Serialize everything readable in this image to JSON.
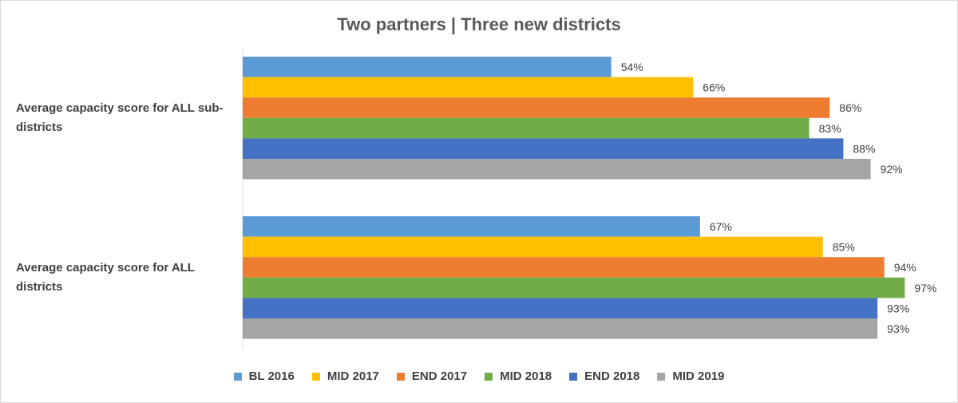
{
  "chart_data": {
    "type": "bar",
    "orientation": "horizontal",
    "title": "Two partners | Three new districts",
    "categories": [
      "Average capacity score for ALL sub-districts",
      "Average capacity score for ALL districts"
    ],
    "series": [
      {
        "name": "BL 2016",
        "color": "#5b9bd5",
        "values": [
          54,
          67
        ],
        "labels": [
          "54%",
          "67%"
        ]
      },
      {
        "name": "MID 2017",
        "color": "#ffc000",
        "values": [
          66,
          85
        ],
        "labels": [
          "66%",
          "85%"
        ]
      },
      {
        "name": "END 2017",
        "color": "#ed7d31",
        "values": [
          86,
          94
        ],
        "labels": [
          "86%",
          "94%"
        ]
      },
      {
        "name": "MID 2018",
        "color": "#70ad47",
        "values": [
          83,
          97
        ],
        "labels": [
          "83%",
          "97%"
        ]
      },
      {
        "name": "END 2018",
        "color": "#4472c4",
        "values": [
          88,
          93
        ],
        "labels": [
          "88%",
          "93%"
        ]
      },
      {
        "name": "MID 2019",
        "color": "#a5a5a5",
        "values": [
          92,
          93
        ],
        "labels": [
          "92%",
          "93%"
        ]
      }
    ],
    "xlim": [
      0,
      100
    ],
    "legend_position": "bottom",
    "grid": false
  }
}
